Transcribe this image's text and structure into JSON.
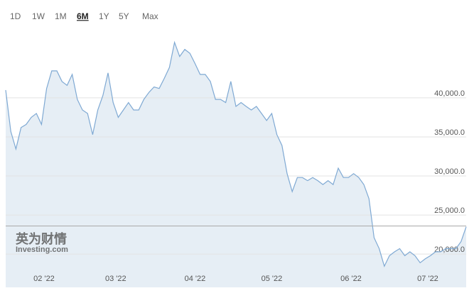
{
  "ranges": [
    "1D",
    "1W",
    "1M",
    "6M",
    "1Y",
    "5Y",
    "Max"
  ],
  "active_range": 3,
  "chart_data": {
    "type": "area",
    "color": "#7fa9d3",
    "fill": "#e6eef5",
    "grid": true,
    "values": [
      41000,
      35700,
      33450,
      36200,
      36600,
      37500,
      38000,
      36600,
      41200,
      43450,
      43450,
      42100,
      41600,
      43000,
      39800,
      38450,
      38000,
      35300,
      38450,
      40300,
      43200,
      39400,
      37500,
      38450,
      39400,
      38450,
      38450,
      39800,
      40700,
      41400,
      41200,
      42500,
      43900,
      47100,
      45300,
      46200,
      45700,
      44400,
      43000,
      43000,
      42100,
      39800,
      39800,
      39400,
      42100,
      38900,
      39400,
      38900,
      38450,
      38900,
      38000,
      37100,
      38000,
      35300,
      33900,
      30300,
      28000,
      29800,
      29800,
      29400,
      29800,
      29400,
      28900,
      29400,
      28900,
      31000,
      29800,
      29800,
      30300,
      29800,
      28900,
      27100,
      22100,
      20700,
      18450,
      19800,
      20300,
      20700,
      19800,
      20300,
      19800,
      18900,
      19400,
      19800,
      20300,
      20300,
      20700,
      20700,
      20700,
      21600,
      23500
    ],
    "xlim": [
      0,
      90
    ],
    "xticks": [
      {
        "value": 7.5,
        "label": "02 '22"
      },
      {
        "value": 21.5,
        "label": "03 '22"
      },
      {
        "value": 37,
        "label": "04 '22"
      },
      {
        "value": 52,
        "label": "05 '22"
      },
      {
        "value": 67.5,
        "label": "06 '22"
      },
      {
        "value": 82.5,
        "label": "07 '22"
      }
    ],
    "ylim": [
      16200,
      49800
    ],
    "yticks": [
      {
        "value": 20000,
        "label": "20,000.0"
      },
      {
        "value": 25000,
        "label": "25,000.0"
      },
      {
        "value": 30000,
        "label": "30,000.0"
      },
      {
        "value": 35000,
        "label": "35,000.0"
      },
      {
        "value": 40000,
        "label": "40,000.0"
      }
    ],
    "reference_line": 23600,
    "reference_color": "#a9a9a9",
    "watermark": {
      "brand": "英为财情",
      "site": "Investing.com"
    }
  }
}
